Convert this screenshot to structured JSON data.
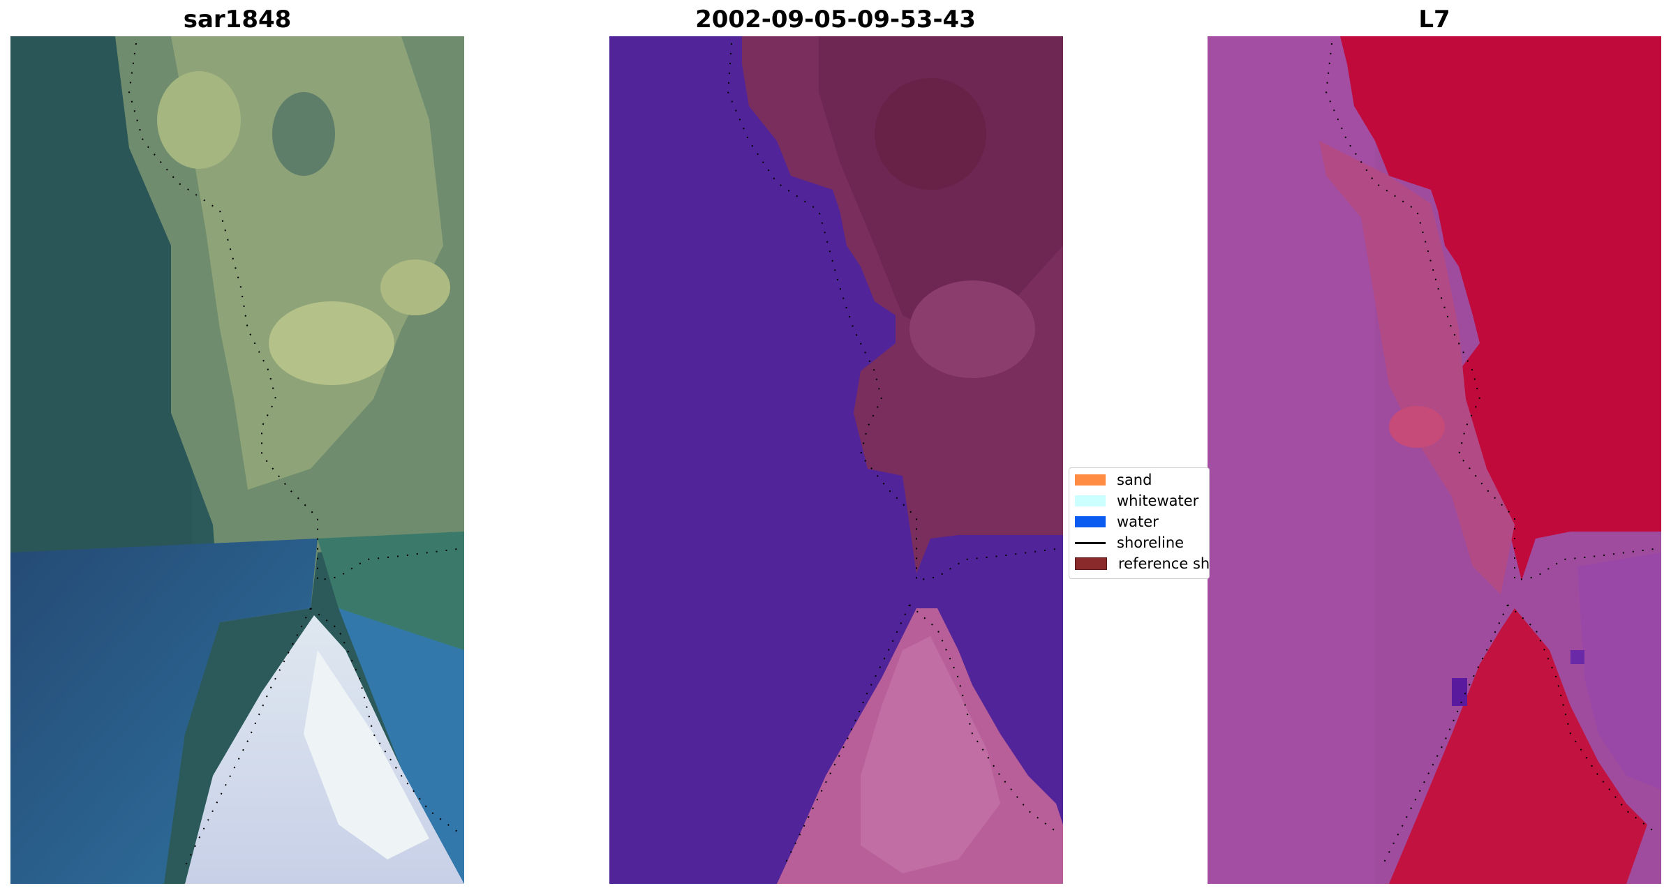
{
  "panels": [
    {
      "title": "sar1848",
      "icon": "rgb-satellite-image"
    },
    {
      "title": "2002-09-05-09-53-43",
      "icon": "classified-image"
    },
    {
      "title": "L7",
      "icon": "mndwi-image"
    }
  ],
  "legend": {
    "items": [
      {
        "label": "sand",
        "color": "#ff8c42",
        "kind": "patch"
      },
      {
        "label": "whitewater",
        "color": "#ccffff",
        "kind": "patch"
      },
      {
        "label": "water",
        "color": "#0a5cf0",
        "kind": "patch"
      },
      {
        "label": "shoreline",
        "color": "#000000",
        "kind": "line"
      },
      {
        "label": "reference sh",
        "color": "#8b2a2a",
        "kind": "patch"
      }
    ]
  }
}
